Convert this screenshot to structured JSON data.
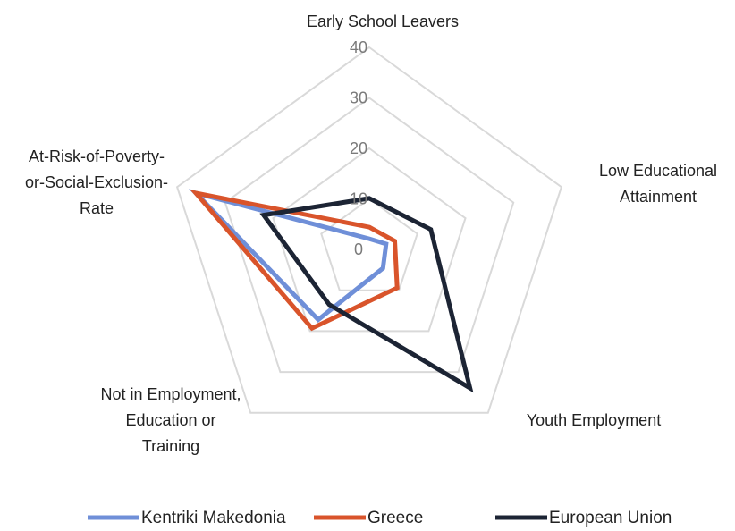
{
  "chart_data": {
    "type": "radar",
    "axes": [
      [
        "Early School Leavers"
      ],
      [
        "Low Educational",
        "Attainment"
      ],
      [
        "Youth Employment"
      ],
      [
        "Not in Employment,",
        "Education or",
        "Training"
      ],
      [
        "At-Risk-of-Poverty-",
        "or-Social-Exclusion-",
        "Rate"
      ]
    ],
    "rlim": [
      0,
      40
    ],
    "ticks": [
      "0",
      "10",
      "20",
      "30",
      "40"
    ],
    "grid": true,
    "legend_position": "bottom",
    "series": [
      {
        "name": "Kentriki Makedonia",
        "color": "#6f8fd8",
        "values": [
          2.1,
          3.5,
          4.6,
          17.2,
          36.1
        ]
      },
      {
        "name": "Greece",
        "color": "#d9542b",
        "values": [
          4.4,
          5.3,
          9.4,
          19.3,
          36.1
        ]
      },
      {
        "name": "European Union",
        "color": "#1c2434",
        "values": [
          10.1,
          12.8,
          33.9,
          13.5,
          22.0
        ]
      }
    ]
  }
}
